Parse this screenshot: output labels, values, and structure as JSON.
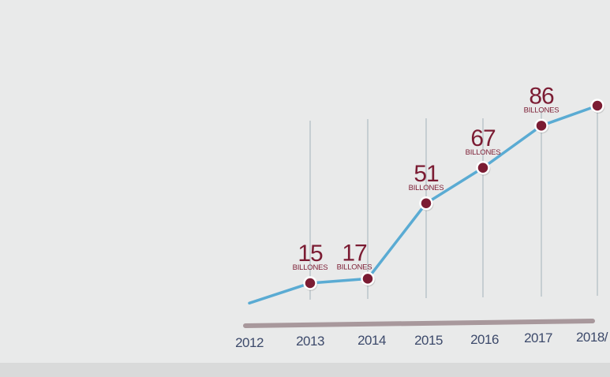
{
  "colors": {
    "panel_bg": "#e9eaea",
    "bottom_strip": "#d9dada",
    "line": "#5aabd3",
    "point": "#7b1c33",
    "label": "#7b1c33",
    "year_text": "#3d4a6b",
    "grid": "#c6ced2",
    "axis_bar": "#a8989c"
  },
  "chart_data": {
    "type": "line",
    "categories": [
      "2012",
      "2013",
      "2014",
      "2015",
      "2016",
      "2017",
      "2018/"
    ],
    "values": [
      null,
      15,
      17,
      51,
      67,
      86,
      95
    ],
    "data_labels": [
      {
        "year": "2013",
        "number": "15",
        "unit": "BILLONES"
      },
      {
        "year": "2014",
        "number": "17",
        "unit": "BILLONES"
      },
      {
        "year": "2015",
        "number": "51",
        "unit": "BILLONES"
      },
      {
        "year": "2016",
        "number": "67",
        "unit": "BILLONES"
      },
      {
        "year": "2017",
        "number": "86",
        "unit": "BILLONES"
      }
    ],
    "line_start_value": 6,
    "grid": true,
    "title": "",
    "xlabel": "",
    "ylabel": ""
  }
}
